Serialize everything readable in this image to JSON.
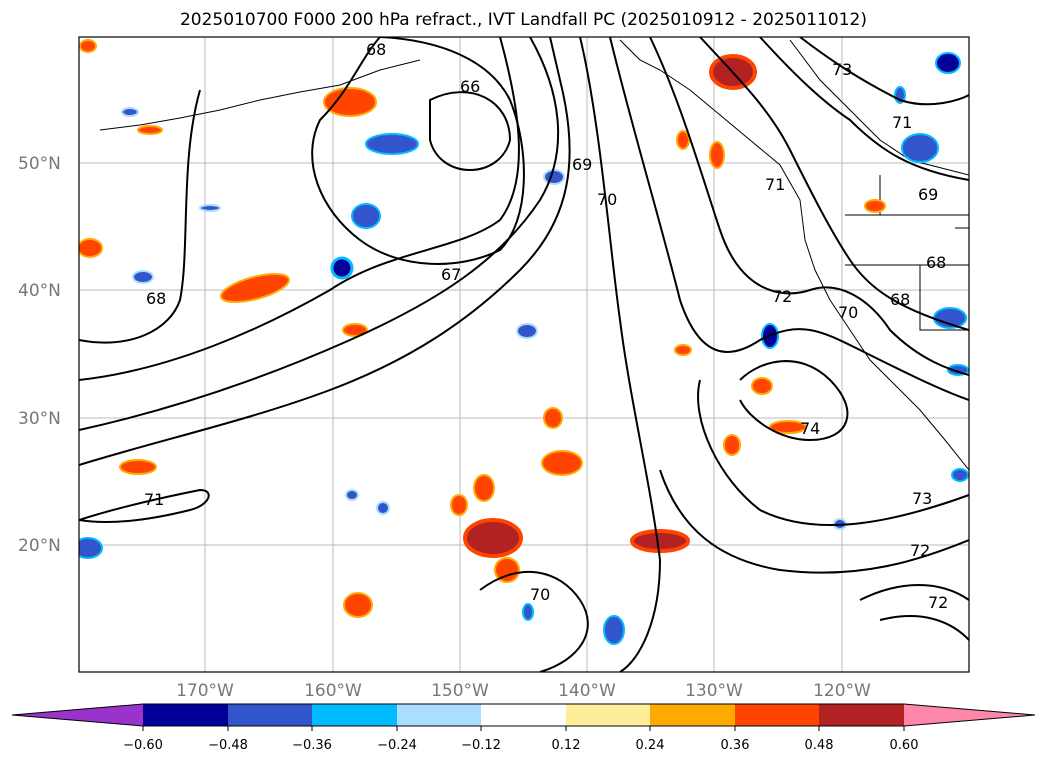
{
  "title": "2025010700 F000 200 hPa refract., IVT Landfall PC (2025010912 - 2025011012)",
  "map": {
    "lat_labels": [
      "50°N",
      "40°N",
      "30°N",
      "20°N"
    ],
    "lon_labels": [
      "170°W",
      "160°W",
      "150°W",
      "140°W",
      "130°W",
      "120°W"
    ],
    "contour_labels": [
      "68",
      "66",
      "69",
      "70",
      "67",
      "68",
      "71",
      "72",
      "74",
      "73",
      "72",
      "72",
      "70",
      "71",
      "69",
      "68",
      "68",
      "70",
      "73",
      "71"
    ]
  },
  "colorbar": {
    "tick_labels": [
      "−0.60",
      "−0.48",
      "−0.36",
      "−0.24",
      "−0.12",
      "0.12",
      "0.24",
      "0.36",
      "0.48",
      "0.60"
    ],
    "colors": [
      "#9933cc",
      "#000099",
      "#3355cc",
      "#00bbff",
      "#aaddff",
      "#ffffff",
      "#ffee99",
      "#ffaa00",
      "#ff4400",
      "#b22222",
      "#ff88aa"
    ]
  }
}
